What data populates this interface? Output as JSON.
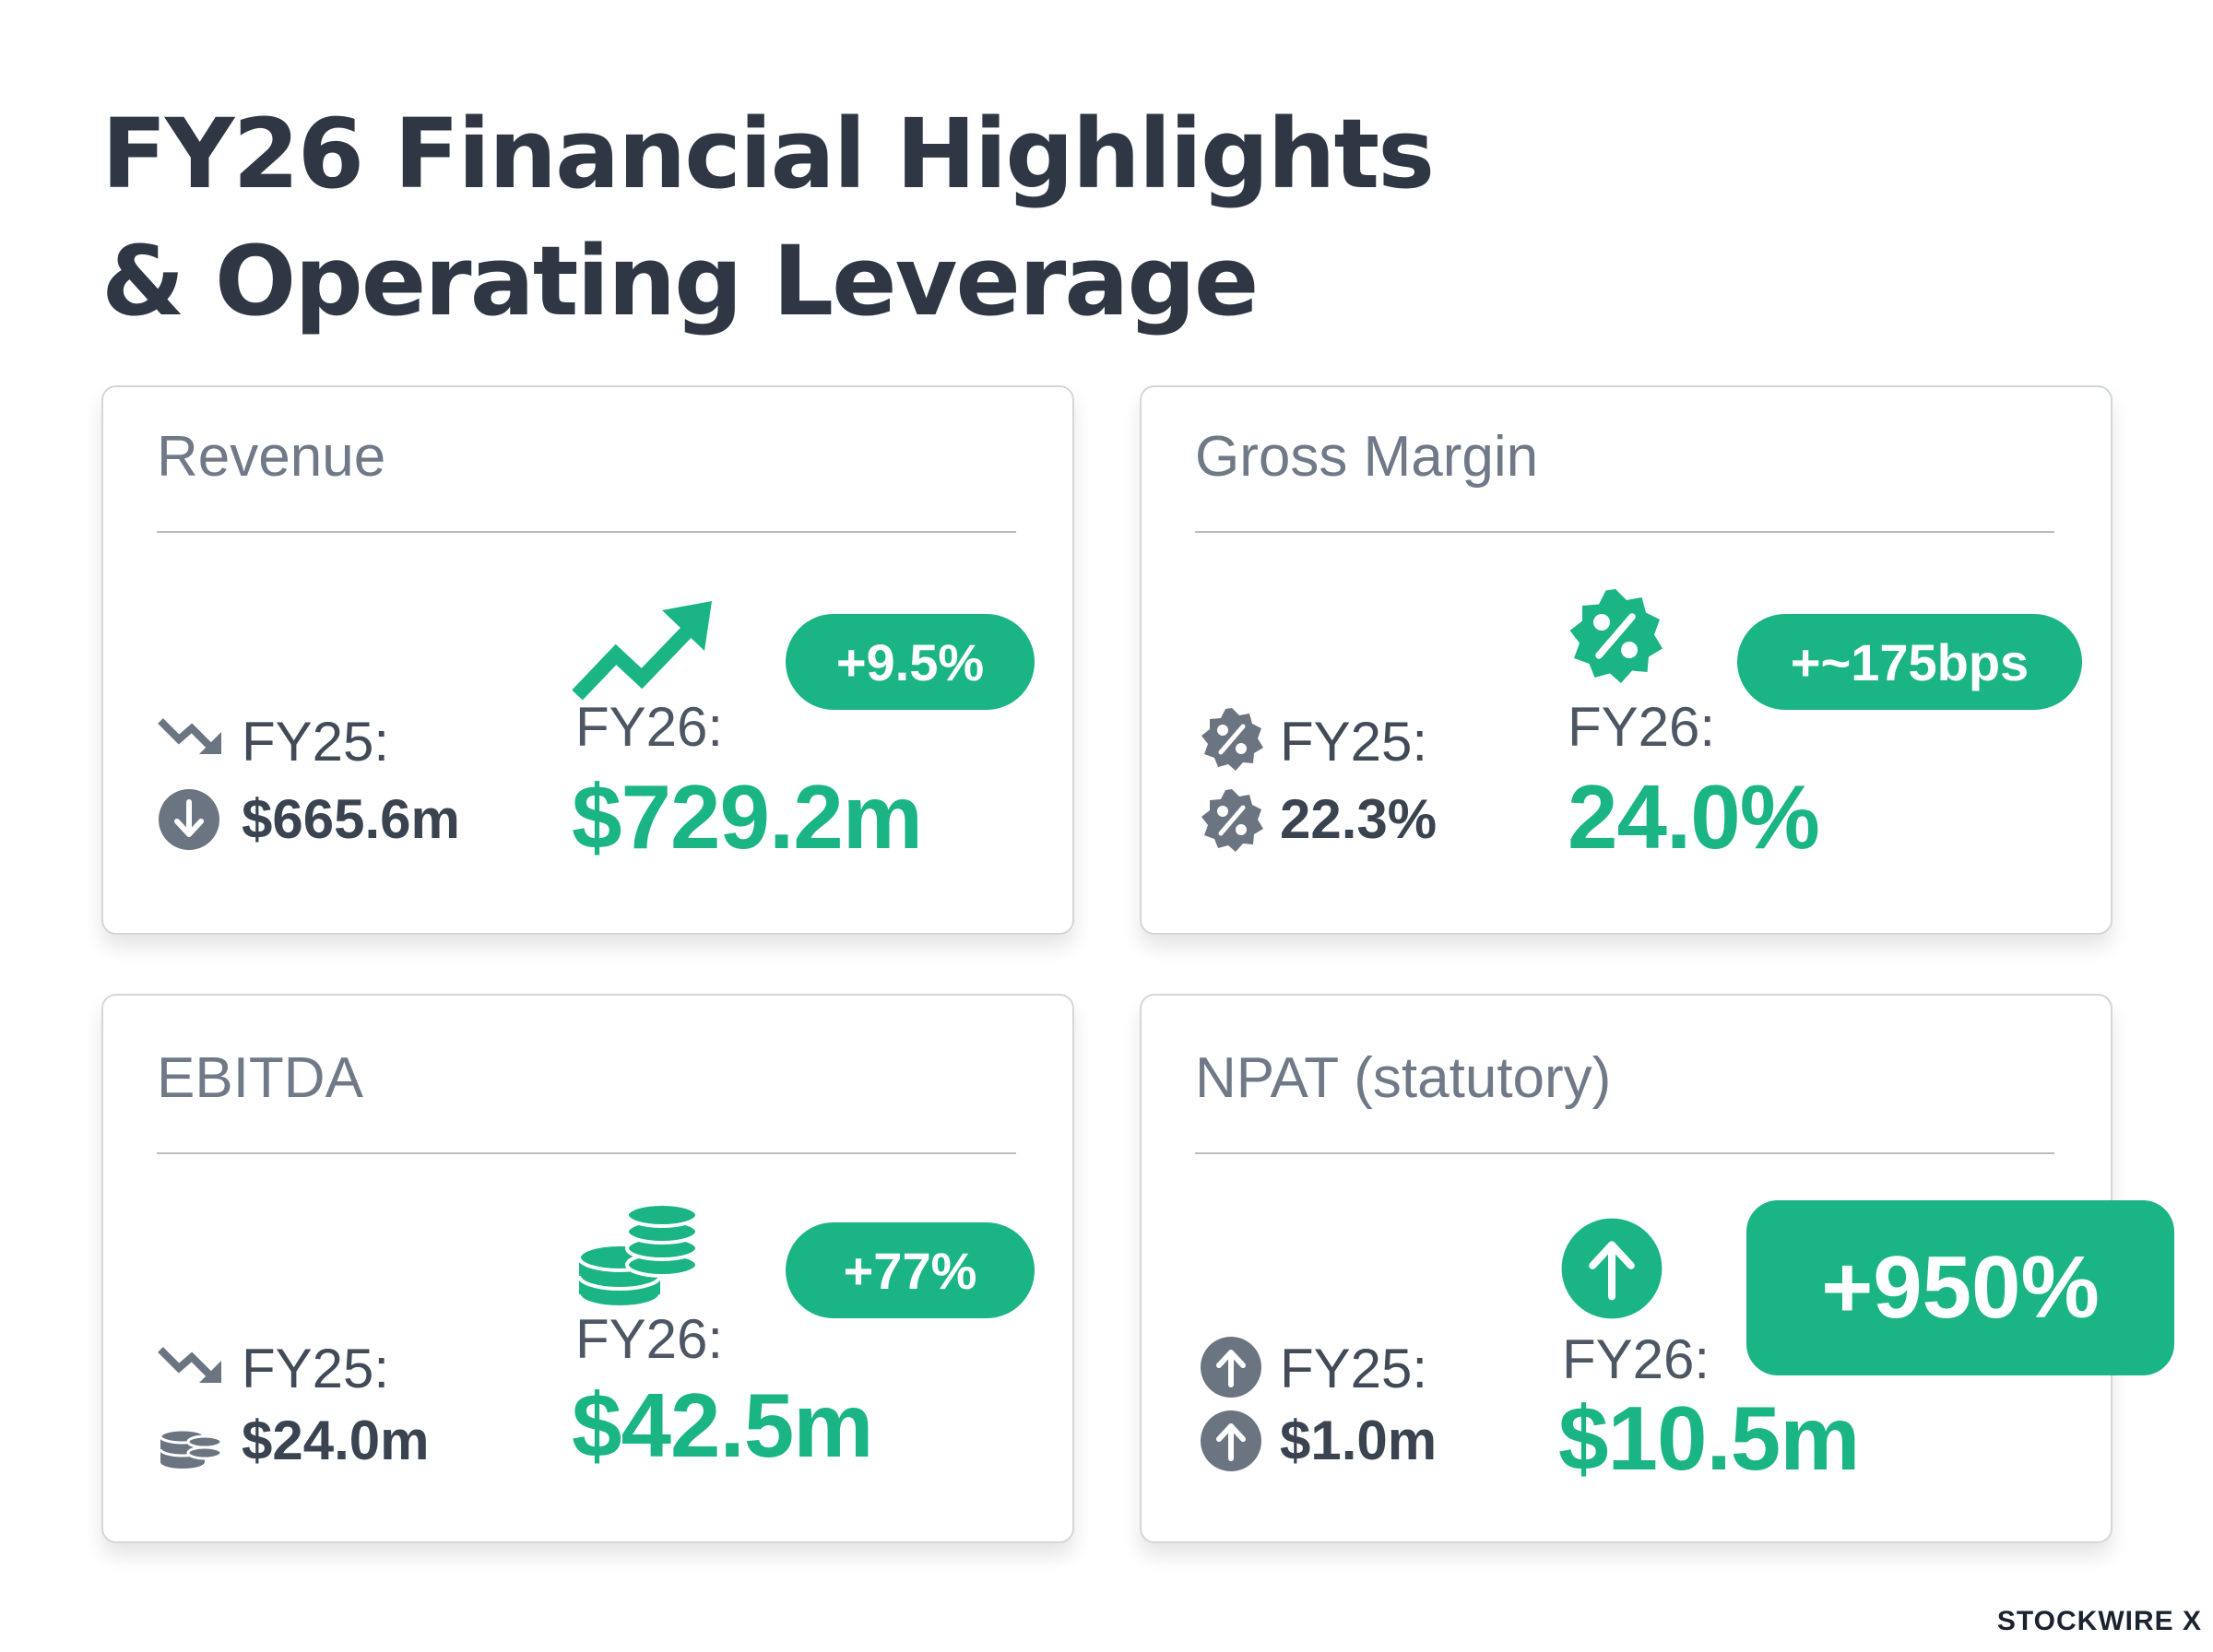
{
  "title": {
    "line1": "FY26 Financial Highlights",
    "line2": "& Operating Leverage"
  },
  "cards": [
    {
      "title": "Revenue",
      "prev_label": "FY25:",
      "prev_value": "$665.6m",
      "cur_label": "FY26:",
      "cur_value": "$729.2m",
      "badge": "+9.5%"
    },
    {
      "title": "Gross Margin",
      "prev_label": "FY25:",
      "prev_value": "22.3%",
      "cur_label": "FY26:",
      "cur_value": "24.0%",
      "badge": "+~175bps"
    },
    {
      "title": "EBITDA",
      "prev_label": "FY25:",
      "prev_value": "$24.0m",
      "cur_label": "FY26:",
      "cur_value": "$42.5m",
      "badge": "+77%"
    },
    {
      "title": "NPAT (statutory)",
      "prev_label": "FY25:",
      "prev_value": "$1.0m",
      "cur_label": "FY26:",
      "cur_value": "$10.5m",
      "badge": "+950%"
    }
  ],
  "footer": {
    "logo": "STOCKWIRE X"
  },
  "colors": {
    "accent": "#1bb585",
    "title": "#2f3744",
    "muted": "#6f7987",
    "icon_gray": "#6b7481"
  },
  "icons": {
    "revenue": [
      "trend-down-icon",
      "arrow-down-circle-icon",
      "trend-up-arrow-icon"
    ],
    "gross_margin": [
      "percent-badge-icon",
      "percent-badge-icon",
      "percent-badge-icon"
    ],
    "ebitda": [
      "trend-down-icon",
      "coin-stack-icon",
      "coin-stacks-icon"
    ],
    "npat": [
      "arrow-up-circle-icon",
      "arrow-up-circle-icon",
      "arrow-up-circle-icon"
    ]
  }
}
